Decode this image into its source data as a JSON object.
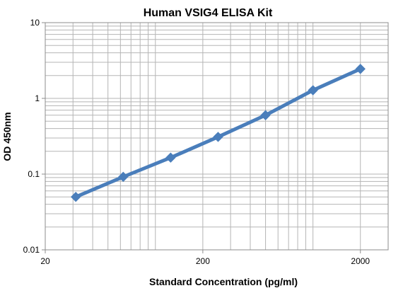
{
  "chart_data": {
    "type": "line",
    "title": "Human VSIG4 ELISA Kit",
    "xlabel": "Standard Concentration (pg/ml)",
    "ylabel": "OD 450nm",
    "x_scale": "log",
    "y_scale": "log",
    "xlim": [
      20,
      3000
    ],
    "ylim": [
      0.01,
      10
    ],
    "x_ticks": [
      20,
      200,
      2000
    ],
    "x_tick_labels": [
      "20",
      "200",
      "2000"
    ],
    "y_ticks": [
      0.01,
      0.1,
      1,
      10
    ],
    "y_tick_labels": [
      "0.01",
      "0.1",
      "1",
      "10"
    ],
    "grid": true,
    "legend": "none",
    "series": [
      {
        "x": [
          31.25,
          62.5,
          125,
          250,
          500,
          1000,
          2000
        ],
        "y": [
          0.05,
          0.092,
          0.165,
          0.31,
          0.6,
          1.28,
          2.45
        ],
        "color": "#4a7ebb",
        "marker": "diamond"
      }
    ]
  }
}
